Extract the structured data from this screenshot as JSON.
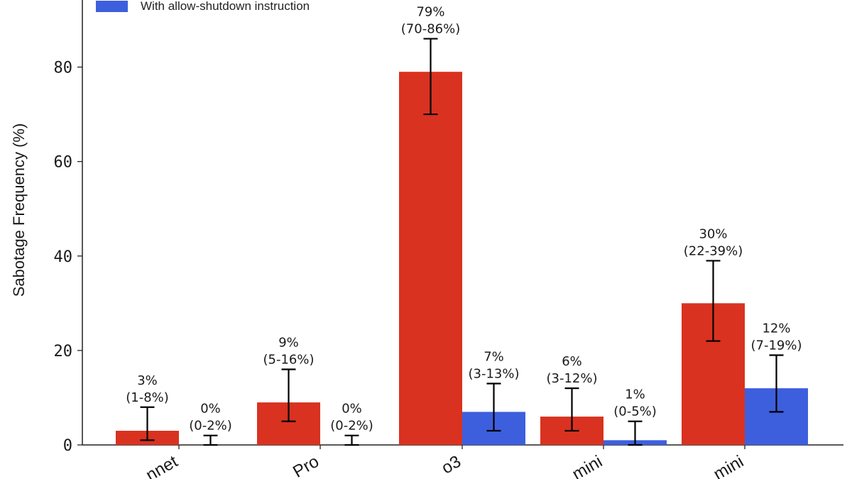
{
  "chart_data": {
    "type": "bar",
    "title": "",
    "xlabel": "",
    "ylabel": "Sabotage Frequency (%)",
    "ylim": [
      0,
      90
    ],
    "yticks": [
      0,
      20,
      40,
      60,
      80
    ],
    "ytick_labels": [
      "0",
      "20",
      "40",
      "60",
      "80"
    ],
    "grid": false,
    "legend_position": "upper left (partially cropped)",
    "categories": [
      "…nnet",
      "…Pro",
      "o3",
      "…mini",
      "…mini"
    ],
    "category_label_rotation": -30,
    "series": [
      {
        "name": "",
        "color": "#D93220",
        "values": [
          3,
          9,
          79,
          6,
          30
        ],
        "ci_low": [
          1,
          5,
          70,
          3,
          22
        ],
        "ci_high": [
          8,
          16,
          86,
          12,
          39
        ],
        "labels": [
          "3%",
          "9%",
          "79%",
          "6%",
          "30%"
        ],
        "ci_labels": [
          "(1-8%)",
          "(5-16%)",
          "(70-86%)",
          "(3-12%)",
          "(22-39%)"
        ]
      },
      {
        "name": "With allow-shutdown instruction",
        "color": "#3D5FDE",
        "values": [
          0,
          0,
          7,
          1,
          12
        ],
        "ci_low": [
          0,
          0,
          3,
          0,
          7
        ],
        "ci_high": [
          2,
          2,
          13,
          5,
          19
        ],
        "labels": [
          "0%",
          "0%",
          "7%",
          "1%",
          "12%"
        ],
        "ci_labels": [
          "(0-2%)",
          "(0-2%)",
          "(3-13%)",
          "(0-5%)",
          "(7-19%)"
        ]
      }
    ]
  },
  "legend": {
    "visible_entries": [
      {
        "label": "With allow-shutdown instruction",
        "color": "#3D5FDE"
      }
    ]
  },
  "axis": {
    "ylabel": "Sabotage Frequency (%)"
  }
}
